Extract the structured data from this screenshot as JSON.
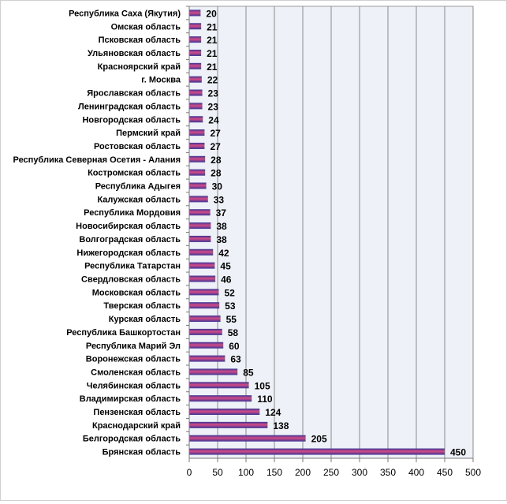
{
  "chart_data": {
    "type": "bar",
    "orientation": "horizontal",
    "categories": [
      "Республика  Саха (Якутия)",
      "Омская  область",
      "Псковская  область",
      "Ульяновская  область",
      "Красноярский  край",
      "г. Москва",
      "Ярославская  область",
      "Ленинградская  область",
      "Новгородская  область",
      "Пермский  край",
      "Ростовская  область",
      "Республика  Северная Осетия - Алания",
      "Костромская  область",
      "Республика  Адыгея",
      "Калужская  область",
      "Республика  Мордовия",
      "Новосибирская  область",
      "Волгоградская  область",
      "Нижегородская  область",
      "Республика  Татарстан",
      "Свердловская  область",
      "Московская  область",
      "Тверская  область",
      "Курская  область",
      "Республика  Башкортостан",
      "Республика  Марий Эл",
      "Воронежская  область",
      "Смоленская  область",
      "Челябинская  область",
      "Владимирская  область",
      "Пензенская  область",
      "Краснодарский  край",
      "Белгородская  область",
      "Брянская  область"
    ],
    "values": [
      20,
      21,
      21,
      21,
      21,
      22,
      23,
      23,
      24,
      27,
      27,
      28,
      28,
      30,
      33,
      37,
      38,
      38,
      42,
      45,
      46,
      52,
      53,
      55,
      58,
      60,
      63,
      85,
      105,
      110,
      124,
      138,
      205,
      450
    ],
    "x_ticks": [
      "0",
      "50",
      "100",
      "150",
      "200",
      "250",
      "300",
      "350",
      "400",
      "450",
      "500"
    ],
    "xlim": [
      0,
      500
    ],
    "grid": true,
    "plot_background": "#eef1f8",
    "bar_colors": {
      "dark": "#3a3597",
      "light": "#d64a86"
    },
    "title": "",
    "xlabel": "",
    "ylabel": ""
  }
}
